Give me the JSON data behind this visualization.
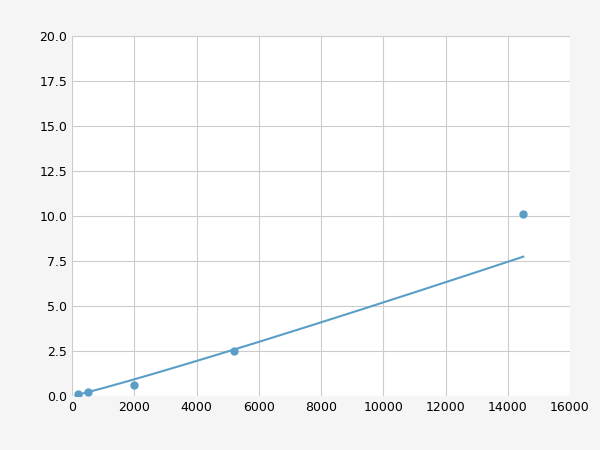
{
  "x": [
    200,
    500,
    2000,
    5200,
    14500
  ],
  "y": [
    0.1,
    0.2,
    0.6,
    2.5,
    10.1
  ],
  "line_color": "#5a9ec8",
  "marker_color": "#5a9ec8",
  "marker_style": "o",
  "marker_size": 5,
  "xlim": [
    0,
    16000
  ],
  "ylim": [
    0,
    20
  ],
  "xticks": [
    0,
    2000,
    4000,
    6000,
    8000,
    10000,
    12000,
    14000,
    16000
  ],
  "yticks": [
    0.0,
    2.5,
    5.0,
    7.5,
    10.0,
    12.5,
    15.0,
    17.5,
    20.0
  ],
  "grid": true,
  "background_color": "#ffffff",
  "figure_facecolor": "#f5f5f5"
}
